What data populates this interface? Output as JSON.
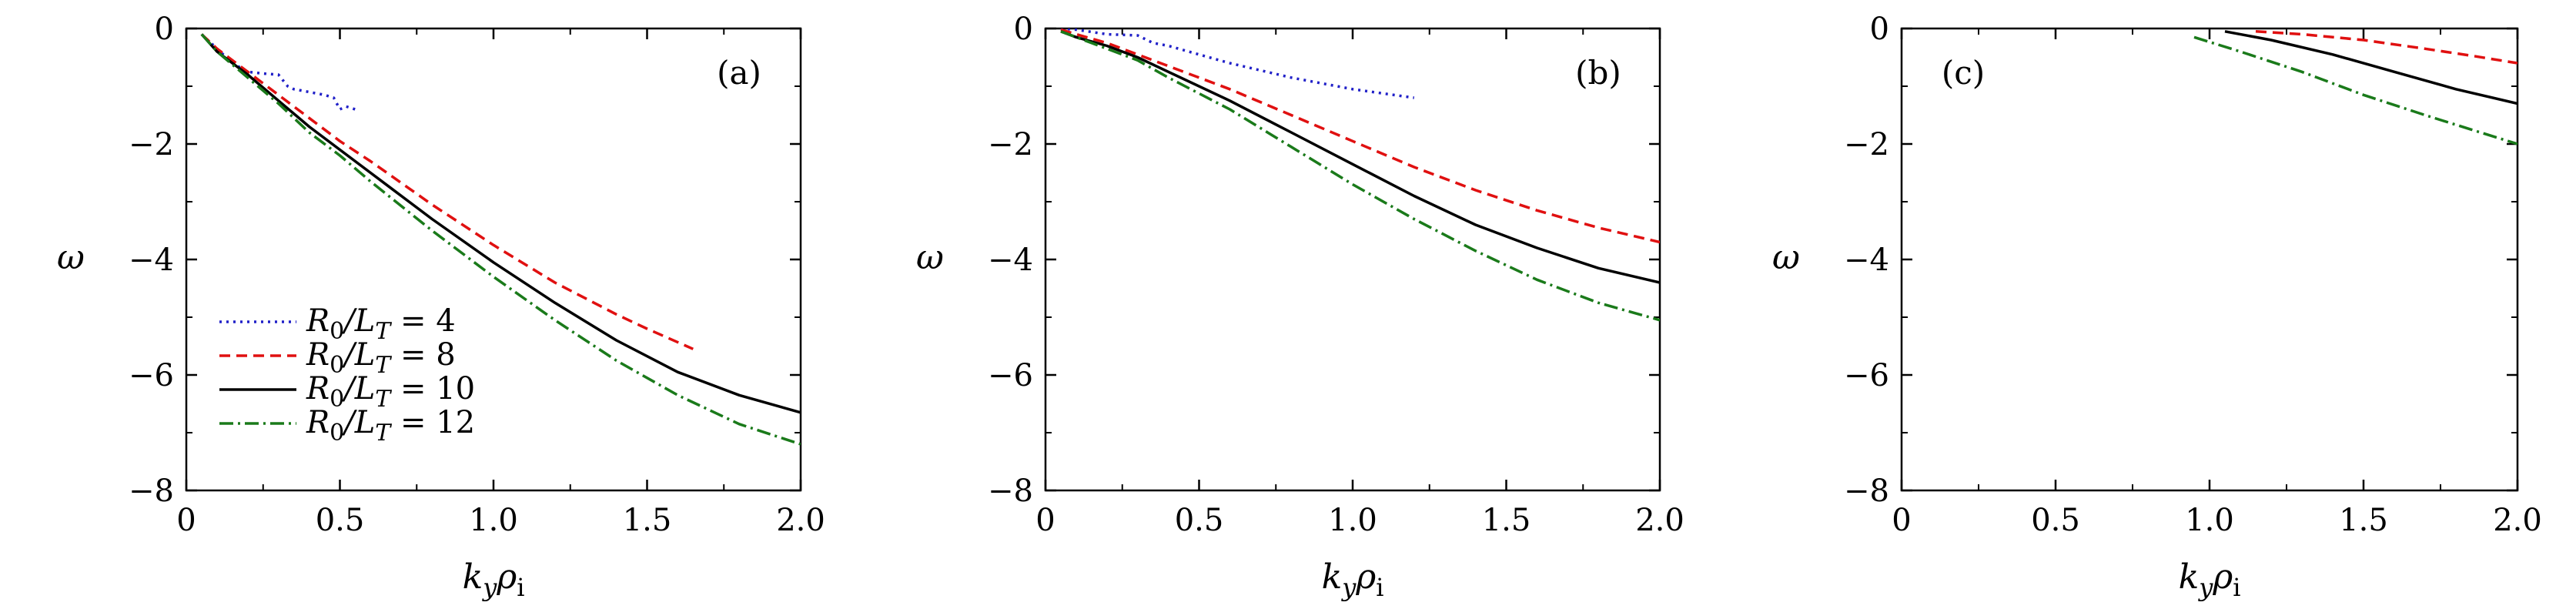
{
  "chart_data": [
    {
      "type": "line",
      "panel_label": "(a)",
      "xlabel": "k_yρ_i",
      "ylabel": "ω",
      "xlim": [
        0,
        2.0
      ],
      "ylim": [
        -8,
        0
      ],
      "xticks": [
        "0",
        "0.5",
        "1.0",
        "1.5",
        "2.0"
      ],
      "yticks": [
        "0",
        "−2",
        "−4",
        "−6",
        "−8"
      ],
      "legend_position": "lower-left",
      "series": [
        {
          "name": "R0/LT = 4",
          "color": "#2020c8",
          "dash": "3,6",
          "x": [
            0.05,
            0.1,
            0.15,
            0.2,
            0.25,
            0.3,
            0.33,
            0.35,
            0.38,
            0.4,
            0.45,
            0.48,
            0.5,
            0.52,
            0.55
          ],
          "y": [
            -0.1,
            -0.35,
            -0.6,
            -0.75,
            -0.78,
            -0.8,
            -1.0,
            -1.05,
            -1.08,
            -1.1,
            -1.15,
            -1.2,
            -1.4,
            -1.35,
            -1.4
          ]
        },
        {
          "name": "R0/LT = 8",
          "color": "#e01010",
          "dash": "14,8",
          "x": [
            0.05,
            0.1,
            0.2,
            0.3,
            0.4,
            0.5,
            0.6,
            0.8,
            1.0,
            1.2,
            1.4,
            1.5,
            1.65
          ],
          "y": [
            -0.1,
            -0.35,
            -0.75,
            -1.15,
            -1.55,
            -1.95,
            -2.3,
            -3.05,
            -3.75,
            -4.4,
            -4.95,
            -5.2,
            -5.55
          ]
        },
        {
          "name": "R0/LT = 10",
          "color": "#000000",
          "dash": "",
          "x": [
            0.05,
            0.1,
            0.2,
            0.3,
            0.4,
            0.5,
            0.6,
            0.8,
            1.0,
            1.2,
            1.4,
            1.6,
            1.8,
            2.0
          ],
          "y": [
            -0.1,
            -0.4,
            -0.8,
            -1.25,
            -1.7,
            -2.1,
            -2.5,
            -3.3,
            -4.05,
            -4.75,
            -5.4,
            -5.95,
            -6.35,
            -6.65
          ]
        },
        {
          "name": "R0/LT = 12",
          "color": "#1a7a1a",
          "dash": "18,6,3,6",
          "x": [
            0.05,
            0.1,
            0.2,
            0.3,
            0.4,
            0.5,
            0.6,
            0.8,
            1.0,
            1.2,
            1.4,
            1.6,
            1.8,
            2.0
          ],
          "y": [
            -0.1,
            -0.4,
            -0.85,
            -1.3,
            -1.8,
            -2.2,
            -2.65,
            -3.5,
            -4.3,
            -5.05,
            -5.75,
            -6.35,
            -6.85,
            -7.2
          ]
        }
      ],
      "legend": [
        {
          "label": "R0/LT = 4"
        },
        {
          "label": "R0/LT = 8"
        },
        {
          "label": "R0/LT = 10"
        },
        {
          "label": "R0/LT = 12"
        }
      ]
    },
    {
      "type": "line",
      "panel_label": "(b)",
      "xlabel": "k_yρ_i",
      "ylabel": "ω",
      "xlim": [
        0,
        2.0
      ],
      "ylim": [
        -8,
        0
      ],
      "xticks": [
        "0",
        "0.5",
        "1.0",
        "1.5",
        "2.0"
      ],
      "yticks": [
        "0",
        "−2",
        "−4",
        "−6",
        "−8"
      ],
      "series": [
        {
          "name": "R0/LT = 4",
          "color": "#2020c8",
          "dash": "3,6",
          "x": [
            0.05,
            0.1,
            0.2,
            0.3,
            0.35,
            0.4,
            0.5,
            0.6,
            0.8,
            1.0,
            1.2
          ],
          "y": [
            0,
            -0.02,
            -0.1,
            -0.12,
            -0.25,
            -0.3,
            -0.45,
            -0.6,
            -0.85,
            -1.05,
            -1.2
          ]
        },
        {
          "name": "R0/LT = 8",
          "color": "#e01010",
          "dash": "14,8",
          "x": [
            0.05,
            0.1,
            0.2,
            0.3,
            0.4,
            0.6,
            0.8,
            1.0,
            1.2,
            1.4,
            1.6,
            1.8,
            2.0
          ],
          "y": [
            -0.02,
            -0.1,
            -0.25,
            -0.45,
            -0.65,
            -1.05,
            -1.5,
            -1.95,
            -2.4,
            -2.8,
            -3.15,
            -3.45,
            -3.7
          ]
        },
        {
          "name": "R0/LT = 10",
          "color": "#000000",
          "dash": "",
          "x": [
            0.05,
            0.1,
            0.2,
            0.3,
            0.4,
            0.6,
            0.8,
            1.0,
            1.2,
            1.4,
            1.6,
            1.8,
            2.0
          ],
          "y": [
            -0.05,
            -0.15,
            -0.3,
            -0.5,
            -0.75,
            -1.25,
            -1.8,
            -2.35,
            -2.9,
            -3.4,
            -3.8,
            -4.15,
            -4.4
          ]
        },
        {
          "name": "R0/LT = 12",
          "color": "#1a7a1a",
          "dash": "18,6,3,6",
          "x": [
            0.05,
            0.1,
            0.2,
            0.3,
            0.4,
            0.6,
            0.8,
            1.0,
            1.2,
            1.4,
            1.6,
            1.8,
            2.0
          ],
          "y": [
            -0.05,
            -0.15,
            -0.35,
            -0.55,
            -0.85,
            -1.4,
            -2.05,
            -2.7,
            -3.3,
            -3.85,
            -4.35,
            -4.75,
            -5.05
          ]
        }
      ]
    },
    {
      "type": "line",
      "panel_label": "(c)",
      "xlabel": "k_yρ_i",
      "ylabel": "ω",
      "xlim": [
        0,
        2.0
      ],
      "ylim": [
        -8,
        0
      ],
      "xticks": [
        "0",
        "0.5",
        "1.0",
        "1.5",
        "2.0"
      ],
      "yticks": [
        "0",
        "−2",
        "−4",
        "−6",
        "−8"
      ],
      "series": [
        {
          "name": "R0/LT = 8",
          "color": "#e01010",
          "dash": "14,8",
          "x": [
            1.15,
            1.3,
            1.5,
            1.7,
            1.85,
            2.0
          ],
          "y": [
            -0.05,
            -0.1,
            -0.2,
            -0.35,
            -0.47,
            -0.6
          ]
        },
        {
          "name": "R0/LT = 10",
          "color": "#000000",
          "dash": "",
          "x": [
            1.05,
            1.2,
            1.4,
            1.6,
            1.8,
            2.0
          ],
          "y": [
            -0.05,
            -0.2,
            -0.45,
            -0.75,
            -1.05,
            -1.3
          ]
        },
        {
          "name": "R0/LT = 12",
          "color": "#1a7a1a",
          "dash": "18,6,3,6",
          "x": [
            0.95,
            1.1,
            1.3,
            1.5,
            1.7,
            1.85,
            2.0
          ],
          "y": [
            -0.15,
            -0.4,
            -0.75,
            -1.15,
            -1.5,
            -1.75,
            -2.0
          ]
        }
      ]
    }
  ]
}
